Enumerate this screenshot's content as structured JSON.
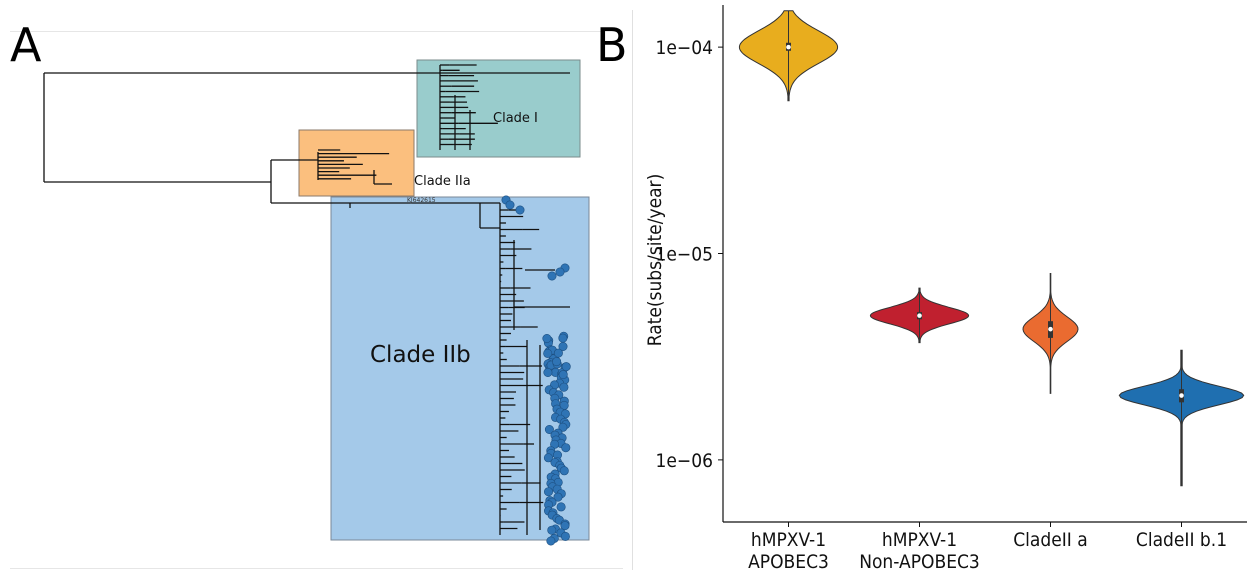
{
  "panels": {
    "a": {
      "letter": "A"
    },
    "b": {
      "letter": "B"
    }
  },
  "tree": {
    "clades": [
      {
        "label": "Clade I",
        "color": "#99cccc"
      },
      {
        "label": "Clade IIa",
        "color": "#fbbf7e"
      },
      {
        "label": "Clade IIb",
        "color": "#a4c9e9"
      }
    ],
    "tip_label": "KJ642615",
    "tip_dot_color": "#2f74b5"
  },
  "chart_data": {
    "type": "violin",
    "ylabel": "Rate(subs/site/year)",
    "yscale": "log",
    "ylim": [
      5e-07,
      0.00016
    ],
    "yticks": [
      {
        "value": 0.0001,
        "label": "1e−04"
      },
      {
        "value": 1e-05,
        "label": "1e−05"
      },
      {
        "value": 1e-06,
        "label": "1e−06"
      }
    ],
    "categories": [
      [
        "hMPXV-1",
        "APOBEC3"
      ],
      [
        "hMPXV-1",
        "Non-APOBEC3"
      ],
      [
        "CladeII a"
      ],
      [
        "CladeII b.1"
      ]
    ],
    "series": [
      {
        "color": "#e8ad1e",
        "median": 0.0001,
        "q1": 9.6e-05,
        "q3": 0.000105,
        "min": 5.5e-05,
        "max": 0.00015,
        "width": 0.75,
        "sd": 0.08
      },
      {
        "color": "#c0202f",
        "median": 5e-06,
        "q1": 4.8e-06,
        "q3": 5.2e-06,
        "min": 3.7e-06,
        "max": 6.8e-06,
        "width": 0.75,
        "sd": 0.04
      },
      {
        "color": "#ea6b30",
        "median": 4.3e-06,
        "q1": 3.9e-06,
        "q3": 4.7e-06,
        "min": 2.1e-06,
        "max": 8e-06,
        "width": 0.42,
        "sd": 0.06
      },
      {
        "color": "#1f6fb0",
        "median": 2.05e-06,
        "q1": 1.9e-06,
        "q3": 2.2e-06,
        "min": 7.5e-07,
        "max": 3.4e-06,
        "width": 0.95,
        "sd": 0.045
      }
    ]
  }
}
